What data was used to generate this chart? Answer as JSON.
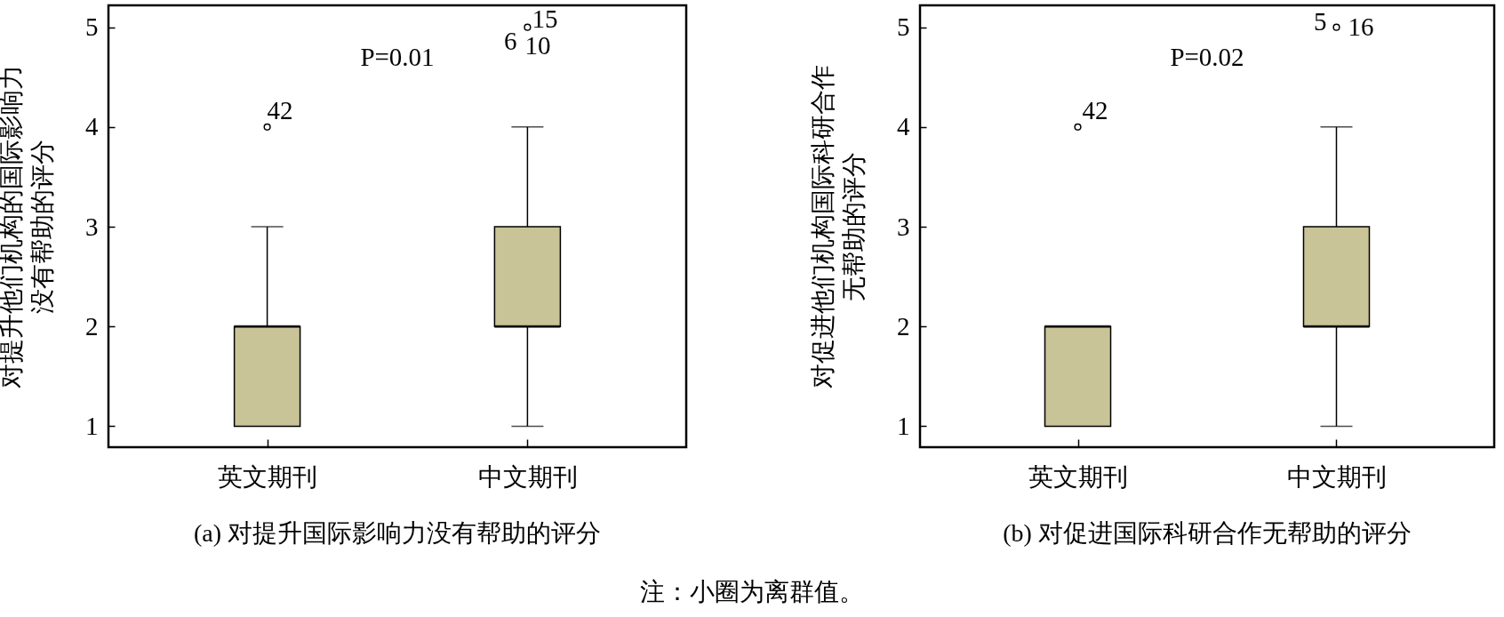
{
  "chart_data": [
    {
      "type": "box",
      "title": "(a) 对提升国际影响力没有帮助的评分",
      "ylabel": "对提升他们机构的国际影响力没有帮助的评分",
      "categories": [
        "英文期刊",
        "中文期刊"
      ],
      "series": [
        {
          "color": "#c9c497",
          "boxes": [
            {
              "low": 1,
              "q1": 1,
              "median": 2,
              "q3": 2,
              "high": 3,
              "outliers": [
                4
              ]
            },
            {
              "low": 1,
              "q1": 2,
              "median": 2,
              "q3": 3,
              "high": 4,
              "outliers": [
                5
              ]
            }
          ]
        }
      ],
      "ylim": [
        0.79,
        5.22
      ],
      "yticks": [
        1,
        2,
        3,
        4,
        5
      ],
      "annotations": [
        "P=0.01",
        "42",
        "15",
        "6",
        "10"
      ]
    },
    {
      "type": "box",
      "title": "(b) 对促进国际科研合作无帮助的评分",
      "ylabel": "对促进他们机构国际科研合作无帮助的评分",
      "categories": [
        "英文期刊",
        "中文期刊"
      ],
      "series": [
        {
          "color": "#c9c497",
          "boxes": [
            {
              "low": 1,
              "q1": 1,
              "median": 2,
              "q3": 2,
              "high": 2,
              "outliers": [
                4
              ]
            },
            {
              "low": 1,
              "q1": 2,
              "median": 2,
              "q3": 3,
              "high": 4,
              "outliers": [
                5
              ]
            }
          ]
        }
      ],
      "ylim": [
        0.79,
        5.22
      ],
      "yticks": [
        1,
        2,
        3,
        4,
        5
      ],
      "annotations": [
        "P=0.02",
        "42",
        "5",
        "16",
        "注：小圈为离群值。"
      ]
    }
  ]
}
